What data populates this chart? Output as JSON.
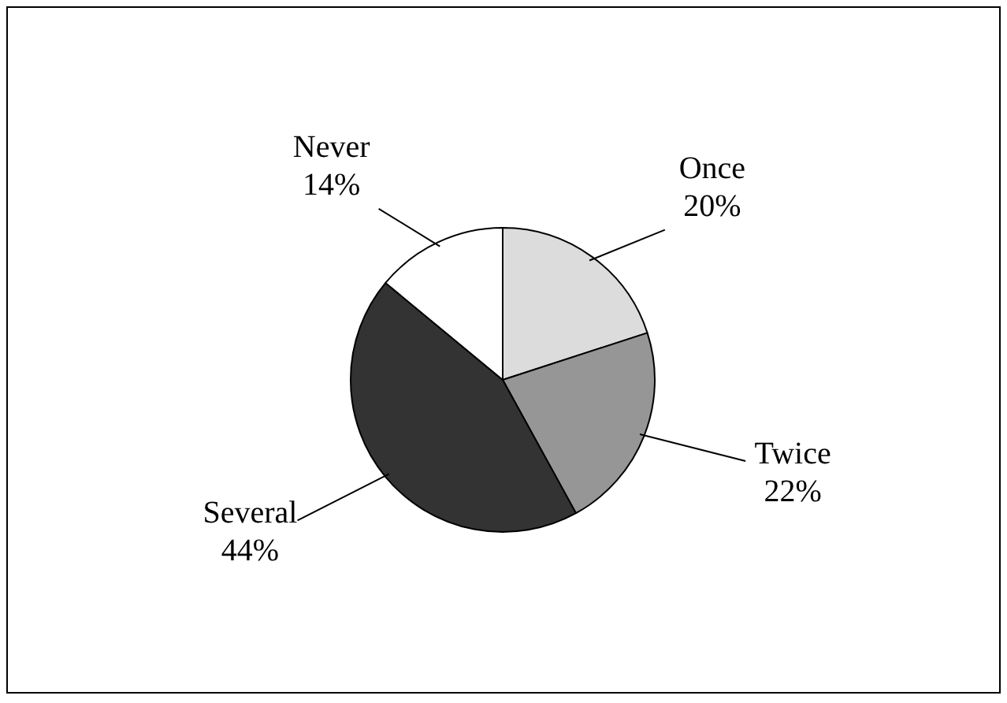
{
  "chart_data": {
    "type": "pie",
    "categories": [
      "Once",
      "Twice",
      "Several",
      "Never"
    ],
    "values": [
      20,
      22,
      44,
      14
    ],
    "colors": [
      "#dcdcdc",
      "#969696",
      "#333333",
      "#ffffff"
    ],
    "value_labels": [
      "20%",
      "22%",
      "44%",
      "14%"
    ],
    "legend": false
  }
}
